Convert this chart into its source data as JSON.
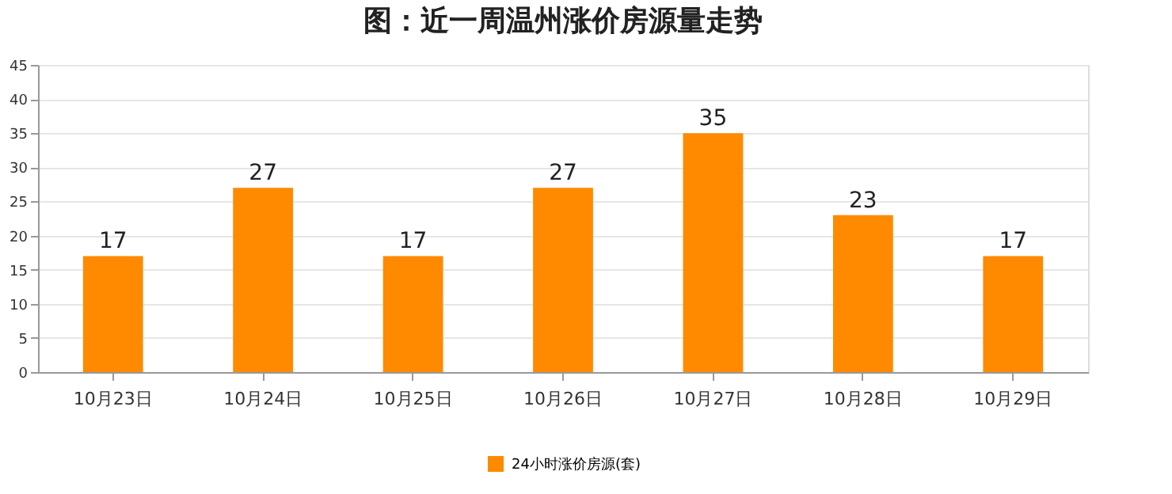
{
  "chart_data": {
    "type": "bar",
    "title": "图：近一周温州涨价房源量走势",
    "categories": [
      "10月23日",
      "10月24日",
      "10月25日",
      "10月26日",
      "10月27日",
      "10月28日",
      "10月29日"
    ],
    "series": [
      {
        "name": "24小时涨价房源(套)",
        "color": "#ff8a00",
        "values": [
          17,
          27,
          17,
          27,
          35,
          23,
          17
        ]
      }
    ],
    "ylim": [
      0,
      45
    ],
    "yticks": [
      0,
      5,
      10,
      15,
      20,
      25,
      30,
      35,
      40,
      45
    ],
    "grid": "y",
    "legend": "bottom",
    "data_labels": true
  }
}
